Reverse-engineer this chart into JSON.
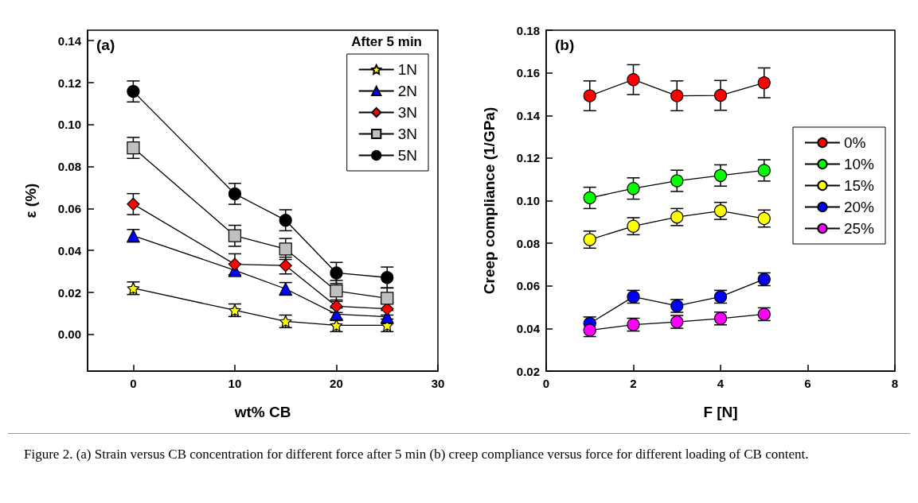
{
  "chart_data": [
    {
      "type": "line",
      "title": "(a)",
      "xlabel": "wt% CB",
      "ylabel": "ε (%)",
      "legend_title": "After 5 min",
      "legend": "top right",
      "grid": false,
      "x": [
        0,
        10,
        15,
        20,
        25
      ],
      "xlim": [
        -4.5,
        30
      ],
      "xticks": [
        0,
        10,
        20,
        30
      ],
      "ylim": [
        -0.0175,
        0.145
      ],
      "yticks": [
        {
          "value": 0,
          "label": "0.00"
        },
        {
          "value": 0.02,
          "label": "0.02"
        },
        {
          "value": 0.04,
          "label": "0.04"
        },
        {
          "value": 0.06,
          "label": "0.06"
        },
        {
          "value": 0.08,
          "label": "0.08"
        },
        {
          "value": 0.1,
          "label": "0.10"
        },
        {
          "value": 0.12,
          "label": "0.12"
        },
        {
          "value": 0.14,
          "label": "0.14"
        }
      ],
      "series": [
        {
          "name": "1N",
          "color": "#ffff00",
          "marker": "star",
          "values": [
            0.022,
            0.0115,
            0.0062,
            0.0043,
            0.0043
          ],
          "errors": [
            0.003,
            0.003,
            0.003,
            0.003,
            0.003
          ]
        },
        {
          "name": "2N",
          "color": "#0000ff",
          "marker": "triangle",
          "values": [
            0.047,
            0.0306,
            0.0217,
            0.0096,
            0.0084
          ],
          "errors": [
            0.003,
            0.003,
            0.003,
            0.003,
            0.003
          ]
        },
        {
          "name": "3N",
          "color": "#ff0000",
          "marker": "diamond",
          "values": [
            0.0621,
            0.0334,
            0.0328,
            0.0134,
            0.0122
          ],
          "errors": [
            0.005,
            0.005,
            0.004,
            0.003,
            0.003
          ]
        },
        {
          "name": "3N",
          "color": "#c0c0c0",
          "marker": "square",
          "values": [
            0.0889,
            0.047,
            0.0407,
            0.0207,
            0.0172
          ],
          "errors": [
            0.005,
            0.005,
            0.005,
            0.005,
            0.005
          ]
        },
        {
          "name": "5N",
          "color": "#000000",
          "marker": "circle",
          "values": [
            0.1158,
            0.067,
            0.0544,
            0.0293,
            0.0271
          ],
          "errors": [
            0.005,
            0.005,
            0.005,
            0.005,
            0.005
          ]
        }
      ],
      "annotations": [
        "Figure 2. (a) Strain versus CB concentration for different force after 5 min (b) creep compliance versus force for different loading of CB content."
      ]
    },
    {
      "type": "line",
      "title": "(b)",
      "xlabel": "F [N]",
      "ylabel": "Creep compliance (1/GPa)",
      "legend": "right",
      "grid": false,
      "marker": "circle",
      "x": [
        1,
        2,
        3,
        4,
        5
      ],
      "xlim": [
        0,
        8
      ],
      "xticks": [
        0,
        2,
        4,
        6,
        8
      ],
      "ylim": [
        0.02,
        0.18
      ],
      "yticks": [
        0.02,
        0.04,
        0.06,
        0.08,
        {
          "value": 0.1,
          "label": "0.10"
        },
        0.12,
        0.14,
        0.16,
        0.18
      ],
      "series": [
        {
          "name": "0%",
          "color": "#ff0000",
          "values": [
            0.1492,
            0.1568,
            0.1492,
            0.1494,
            0.1553
          ],
          "errors": [
            0.007,
            0.007,
            0.007,
            0.007,
            0.007
          ]
        },
        {
          "name": "10%",
          "color": "#00ff00",
          "values": [
            0.1013,
            0.1057,
            0.1093,
            0.1118,
            0.1142
          ],
          "errors": [
            0.005,
            0.005,
            0.005,
            0.005,
            0.005
          ]
        },
        {
          "name": "15%",
          "color": "#ffff00",
          "values": [
            0.0817,
            0.088,
            0.0923,
            0.0952,
            0.0916
          ],
          "errors": [
            0.004,
            0.004,
            0.004,
            0.004,
            0.004
          ]
        },
        {
          "name": "20%",
          "color": "#0000ff",
          "values": [
            0.0424,
            0.0549,
            0.0506,
            0.0549,
            0.0631
          ],
          "errors": [
            0.003,
            0.003,
            0.003,
            0.003,
            0.003
          ]
        },
        {
          "name": "25%",
          "color": "#ff00ff",
          "values": [
            0.0392,
            0.0418,
            0.0431,
            0.0447,
            0.0467
          ],
          "errors": [
            0.003,
            0.003,
            0.003,
            0.003,
            0.003
          ]
        }
      ]
    }
  ]
}
